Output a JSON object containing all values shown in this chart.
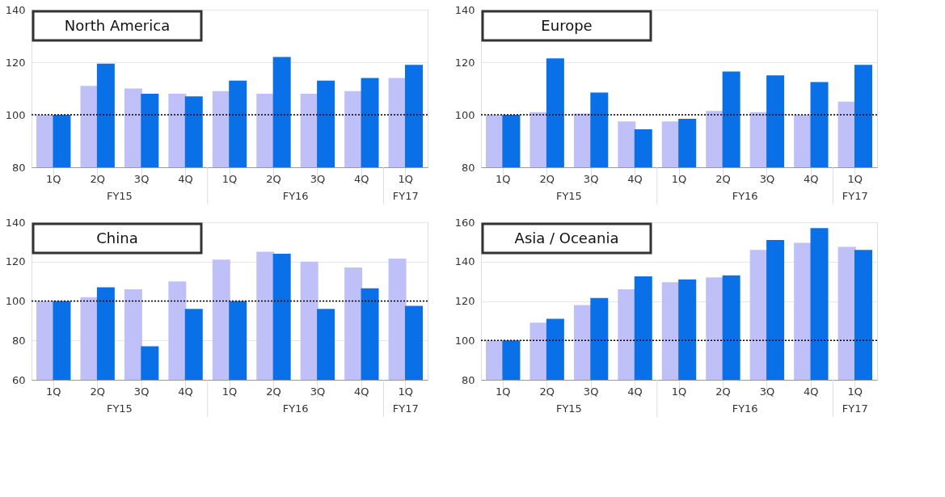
{
  "chart_data": [
    {
      "type": "bar",
      "title": "North America",
      "categories": [
        "1Q",
        "2Q",
        "3Q",
        "4Q",
        "1Q",
        "2Q",
        "3Q",
        "4Q",
        "1Q"
      ],
      "series": [
        {
          "color": "#c0c0f8",
          "values": [
            100,
            111,
            110,
            108,
            109,
            108,
            108,
            109,
            114
          ]
        },
        {
          "color": "#0a70e8",
          "values": [
            100,
            119.5,
            108,
            107,
            113,
            122,
            113,
            114,
            119
          ]
        }
      ],
      "ylim": [
        80,
        140
      ],
      "yticks": [
        80,
        100,
        120,
        140
      ],
      "grid": "y",
      "legend": false,
      "ref_lines": [
        {
          "axis": "y",
          "value": 100,
          "color": "#000000",
          "line_style": "dotted"
        }
      ],
      "annotations": [
        "FY15",
        "FY16",
        "FY17"
      ]
    },
    {
      "type": "bar",
      "title": "Europe",
      "categories": [
        "1Q",
        "2Q",
        "3Q",
        "4Q",
        "1Q",
        "2Q",
        "3Q",
        "4Q",
        "1Q"
      ],
      "series": [
        {
          "color": "#c0c0f8",
          "values": [
            100,
            101,
            100.5,
            97.5,
            97.5,
            101.5,
            101,
            100,
            105
          ]
        },
        {
          "color": "#0a70e8",
          "values": [
            100,
            121.5,
            108.5,
            94.5,
            98.5,
            116.5,
            115,
            112.5,
            119
          ]
        }
      ],
      "ylim": [
        80,
        140
      ],
      "yticks": [
        80,
        100,
        120,
        140
      ],
      "grid": "y",
      "legend": false,
      "ref_lines": [
        {
          "axis": "y",
          "value": 100,
          "color": "#000000",
          "line_style": "dotted"
        }
      ],
      "annotations": [
        "FY15",
        "FY16",
        "FY17"
      ]
    },
    {
      "type": "bar",
      "title": "China",
      "categories": [
        "1Q",
        "2Q",
        "3Q",
        "4Q",
        "1Q",
        "2Q",
        "3Q",
        "4Q",
        "1Q"
      ],
      "series": [
        {
          "color": "#c0c0f8",
          "values": [
            100,
            102,
            106,
            110,
            121,
            125,
            120,
            117,
            121.5
          ]
        },
        {
          "color": "#0a70e8",
          "values": [
            100,
            107,
            77,
            96,
            100,
            124,
            96,
            106.5,
            97.5
          ]
        }
      ],
      "ylim": [
        60,
        140
      ],
      "yticks": [
        60,
        80,
        100,
        120,
        140
      ],
      "grid": "y",
      "legend": false,
      "ref_lines": [
        {
          "axis": "y",
          "value": 100,
          "color": "#000000",
          "line_style": "dotted"
        }
      ],
      "annotations": [
        "FY15",
        "FY16",
        "FY17"
      ]
    },
    {
      "type": "bar",
      "title": "Asia / Oceania",
      "categories": [
        "1Q",
        "2Q",
        "3Q",
        "4Q",
        "1Q",
        "2Q",
        "3Q",
        "4Q",
        "1Q"
      ],
      "series": [
        {
          "color": "#c0c0f8",
          "values": [
            100,
            109,
            118,
            126,
            129.5,
            132,
            146,
            149.5,
            147.5
          ]
        },
        {
          "color": "#0a70e8",
          "values": [
            100,
            111,
            121.5,
            132.5,
            131,
            133,
            151,
            157,
            146
          ]
        }
      ],
      "ylim": [
        80,
        160
      ],
      "yticks": [
        80,
        100,
        120,
        140,
        160
      ],
      "grid": "y",
      "legend": false,
      "ref_lines": [
        {
          "axis": "y",
          "value": 100,
          "color": "#000000",
          "line_style": "dotted"
        }
      ],
      "annotations": [
        "FY15",
        "FY16",
        "FY17"
      ]
    }
  ]
}
